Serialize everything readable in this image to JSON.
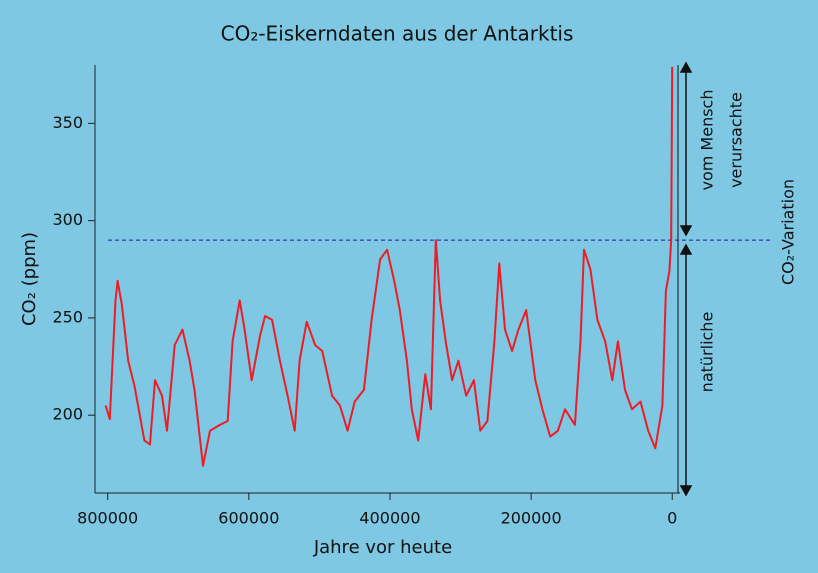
{
  "chart_data": {
    "type": "line",
    "title": "CO₂-Eiskerndaten aus der Antarktis",
    "x_label": "Jahre vor heute",
    "y_label": "CO₂ (ppm)",
    "color": "#ee1c25",
    "x": [
      803000,
      797000,
      789000,
      786000,
      780000,
      771000,
      762000,
      748000,
      740000,
      733000,
      723000,
      716000,
      705000,
      694000,
      684000,
      677000,
      665000,
      655000,
      641000,
      630000,
      623000,
      613000,
      606000,
      596000,
      584000,
      577000,
      567000,
      556000,
      545000,
      535000,
      528000,
      518000,
      506000,
      496000,
      482000,
      471000,
      460000,
      450000,
      437000,
      426000,
      414000,
      404000,
      394000,
      386000,
      376000,
      369000,
      360000,
      350000,
      342000,
      335000,
      329000,
      321000,
      312000,
      303000,
      292000,
      281000,
      272000,
      262000,
      252000,
      245000,
      237000,
      227000,
      218000,
      207000,
      194000,
      184000,
      173000,
      162000,
      152000,
      138000,
      130000,
      125000,
      116000,
      106000,
      95000,
      85000,
      77000,
      67000,
      57000,
      45000,
      34000,
      24000,
      14000,
      9000,
      4000,
      1500,
      0
    ],
    "values": [
      205,
      198,
      259,
      269,
      257,
      228,
      215,
      187,
      185,
      218,
      210,
      192,
      236,
      244,
      228,
      213,
      174,
      192,
      195,
      197,
      238,
      259,
      244,
      218,
      241,
      251,
      249,
      228,
      210,
      192,
      228,
      248,
      236,
      233,
      210,
      205,
      192,
      207,
      213,
      249,
      280,
      285,
      269,
      254,
      228,
      203,
      187,
      221,
      203,
      290,
      259,
      238,
      218,
      228,
      210,
      218,
      192,
      197,
      238,
      278,
      244,
      233,
      244,
      254,
      218,
      203,
      189,
      192,
      203,
      195,
      238,
      285,
      275,
      249,
      238,
      218,
      238,
      213,
      203,
      207,
      192,
      183,
      205,
      264,
      274,
      290,
      379
    ],
    "xlim": [
      818000,
      -11000
    ],
    "xticks": [
      800000,
      600000,
      400000,
      200000,
      0
    ],
    "ylim": [
      160,
      380
    ],
    "yticks": [
      200,
      250,
      300,
      350
    ],
    "reference_line": 290,
    "annotations": [
      "vom Mensch",
      "verursachte",
      "natürliche",
      "CO₂-Variation"
    ]
  }
}
